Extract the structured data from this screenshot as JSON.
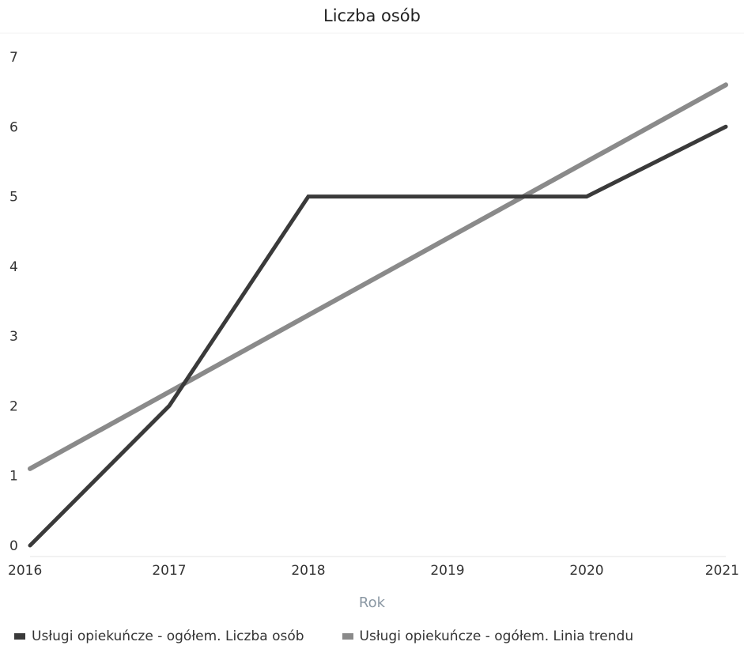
{
  "chart_data": {
    "type": "line",
    "title": "Liczba osób",
    "xlabel": "Rok",
    "ylabel": "",
    "x": [
      "2016",
      "2017",
      "2018",
      "2019",
      "2020",
      "2021"
    ],
    "ylim": [
      0,
      7
    ],
    "yticks": [
      "0",
      "1",
      "2",
      "3",
      "4",
      "5",
      "6",
      "7"
    ],
    "grid": false,
    "legend_position": "bottom",
    "series": [
      {
        "name": "Usługi opiekuńcze - ogółem. Liczba osób",
        "values": [
          0,
          2,
          5,
          5,
          5,
          6
        ],
        "color": "#3a3a3a"
      },
      {
        "name": "Usługi opiekuńcze - ogółem. Linia trendu",
        "values": [
          1.1,
          2.2,
          3.3,
          4.4,
          5.5,
          6.6
        ],
        "color": "#8a8a8a"
      }
    ]
  }
}
